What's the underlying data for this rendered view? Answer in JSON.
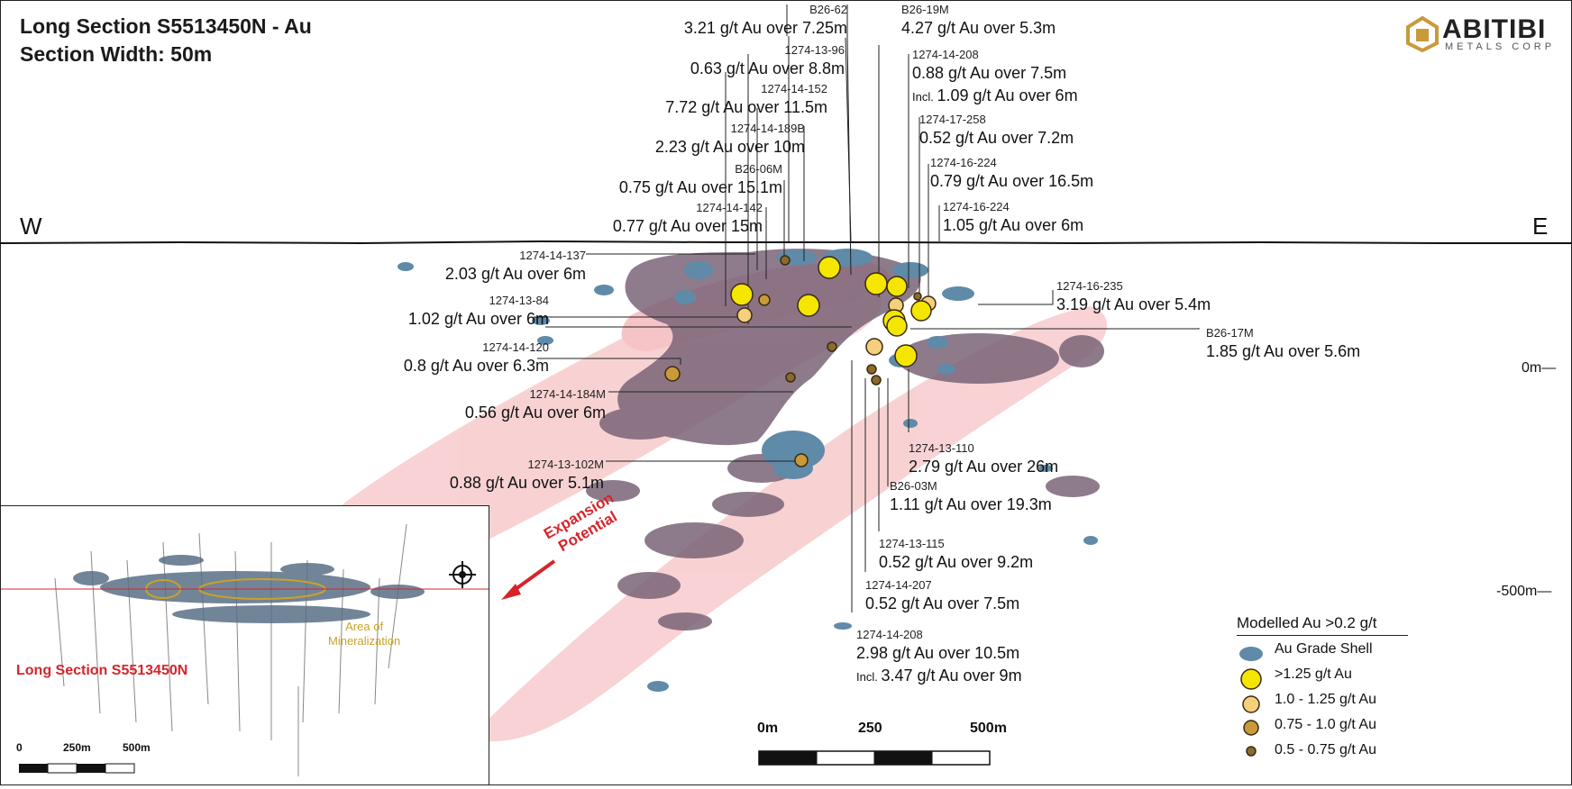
{
  "title": {
    "line1": "Long Section S5513450N - Au",
    "line2": "Section Width: 50m"
  },
  "logo": {
    "name": "ABITIBI",
    "subtitle": "METALS CORP"
  },
  "directions": {
    "west": "W",
    "east": "E"
  },
  "elevations": {
    "zero": "0m",
    "minus500": "-500m"
  },
  "labels": [
    {
      "id": "B26-62",
      "value": "3.21 g/t Au over 7.25m"
    },
    {
      "id": "B26-19M",
      "value": "4.27 g/t Au over 5.3m"
    },
    {
      "id": "1274-13-96",
      "value": "0.63 g/t Au over 8.8m"
    },
    {
      "id": "1274-14-208",
      "value": "0.88 g/t Au over 7.5m",
      "incl": "Incl.",
      "incl_value": "1.09 g/t Au over 6m"
    },
    {
      "id": "1274-14-152",
      "value": "7.72 g/t Au over 11.5m"
    },
    {
      "id": "1274-17-258",
      "value": "0.52 g/t Au over 7.2m"
    },
    {
      "id": "1274-14-189B",
      "value": "2.23 g/t Au over 10m"
    },
    {
      "id": "1274-16-224",
      "value": "0.79 g/t Au over 16.5m"
    },
    {
      "id": "B26-06M",
      "value": "0.75 g/t Au over 15.1m"
    },
    {
      "id": "1274-14-142",
      "value": "0.77 g/t Au over 15m"
    },
    {
      "id": "1274-16-224",
      "value": "1.05 g/t Au over 6m"
    },
    {
      "id": "1274-14-137",
      "value": "2.03 g/t Au over 6m"
    },
    {
      "id": "1274-16-235",
      "value": "3.19 g/t Au over 5.4m"
    },
    {
      "id": "1274-13-84",
      "value": "1.02 g/t Au over 6m"
    },
    {
      "id": "B26-17M",
      "value": "1.85 g/t Au over 5.6m"
    },
    {
      "id": "1274-14-120",
      "value": "0.8 g/t Au over 6.3m"
    },
    {
      "id": "1274-14-184M",
      "value": "0.56 g/t Au over 6m"
    },
    {
      "id": "1274-13-110",
      "value": "2.79 g/t Au over 26m"
    },
    {
      "id": "1274-13-102M",
      "value": "0.88 g/t Au over 5.1m"
    },
    {
      "id": "B26-03M",
      "value": "1.11 g/t Au over 19.3m"
    },
    {
      "id": "1274-13-115",
      "value": "0.52 g/t Au over 9.2m"
    },
    {
      "id": "1274-14-207",
      "value": "0.52 g/t Au over 7.5m"
    },
    {
      "id": "1274-14-208",
      "value": "2.98 g/t Au over 10.5m",
      "incl": "Incl.",
      "incl_value": "3.47 g/t Au over 9m"
    }
  ],
  "expansion": {
    "line1": "Expansion",
    "line2": "Potential"
  },
  "inset": {
    "section_label": "Long Section S5513450N",
    "area_line1": "Area of",
    "area_line2": "Mineralization",
    "scale": [
      "0",
      "250m",
      "500m"
    ]
  },
  "legend": {
    "title": "Modelled Au >0.2 g/t",
    "items": [
      {
        "label": "Au Grade Shell",
        "color": "#5f8aa8"
      },
      {
        "label": ">1.25 g/t Au",
        "color": "#f5e600"
      },
      {
        "label": "1.0 - 1.25 g/t Au",
        "color": "#f4cf7c"
      },
      {
        "label": "0.75 - 1.0 g/t Au",
        "color": "#c89a3a"
      },
      {
        "label": "0.5 - 0.75 g/t Au",
        "color": "#8a6a2e"
      }
    ]
  },
  "scalebar": [
    "0m",
    "250",
    "500m"
  ],
  "colors": {
    "accent_red": "#d6242a",
    "shell_blue": "#5f8aa8",
    "mineral_purple": "#7a6478",
    "expansion_pink": "#f4b8bb"
  }
}
